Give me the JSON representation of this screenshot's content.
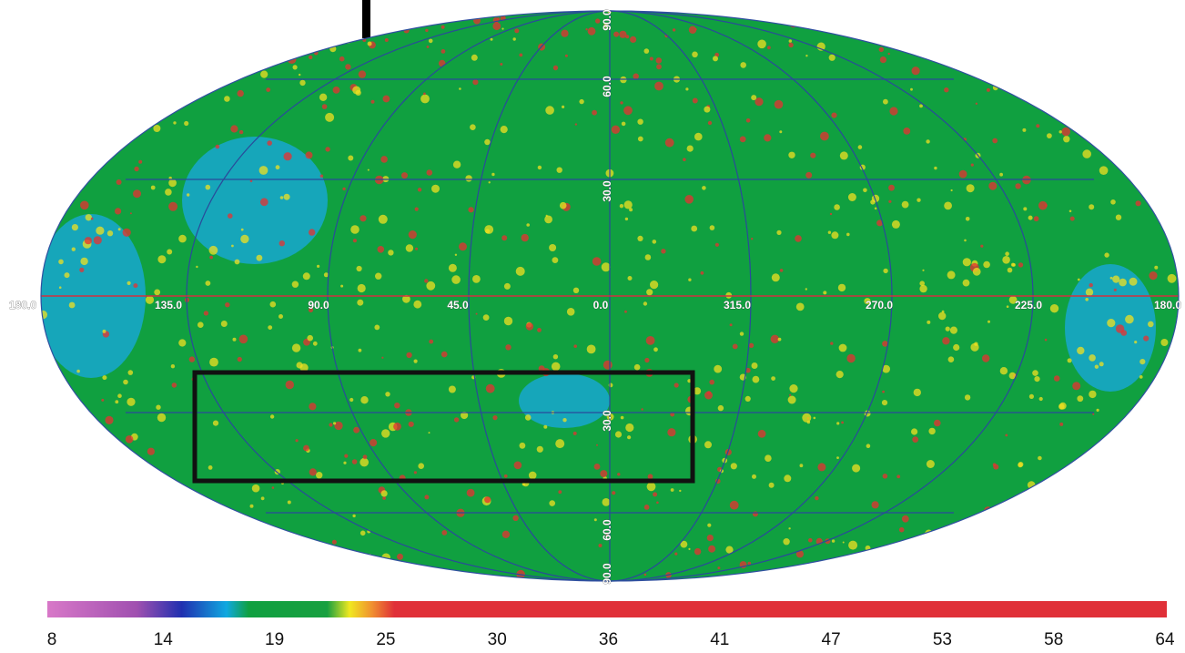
{
  "map": {
    "lon_labels": [
      "180.0",
      "135.0",
      "90.0",
      "45.0",
      "0.0",
      "315.0",
      "270.0",
      "225.0",
      "180.0"
    ],
    "lat_labels": [
      "90.0",
      "60.0",
      "30.0",
      "30.0",
      "60.0",
      "90.0"
    ]
  },
  "colorbar": {
    "ticks": [
      8,
      14,
      19,
      25,
      30,
      36,
      41,
      47,
      53,
      58,
      64
    ]
  }
}
